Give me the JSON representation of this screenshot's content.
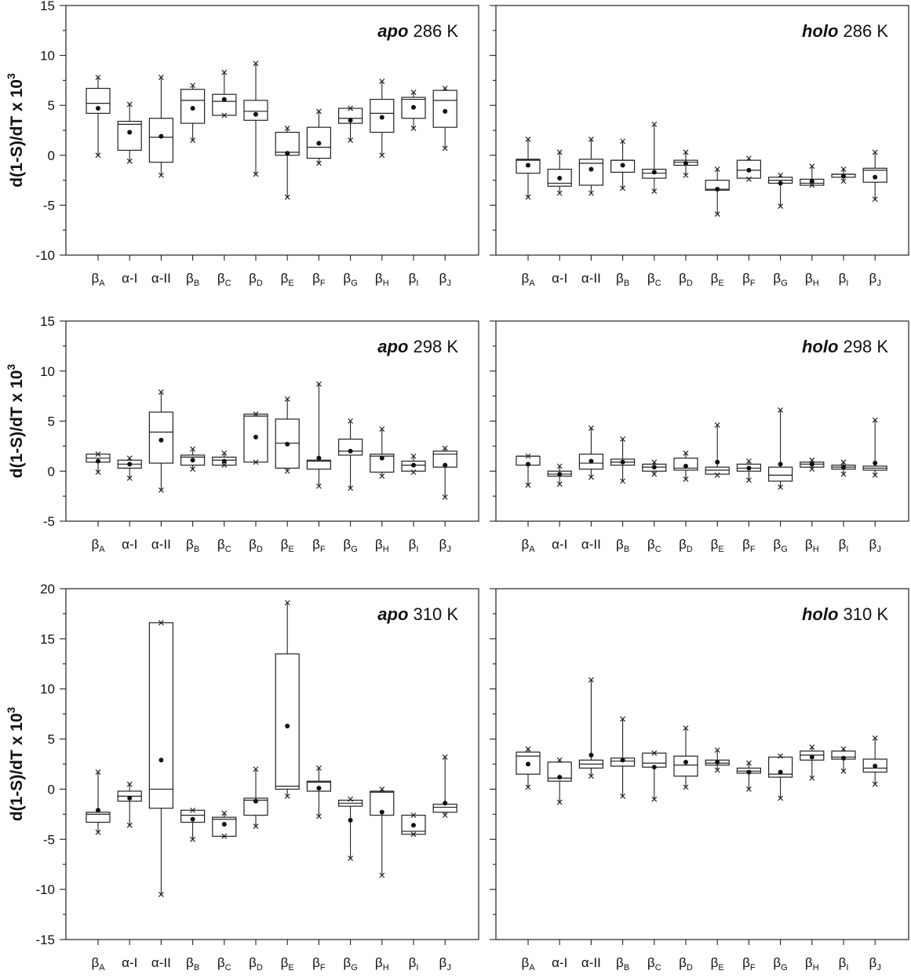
{
  "y_axis_label": "d(1-S)/dT x 10",
  "y_axis_exponent": "3",
  "chart_data": [
    {
      "type": "box",
      "panel": "apo-286",
      "title_italic": "apo",
      "title_rest": " 286 K",
      "ylim": [
        -10,
        15
      ],
      "yticks": [
        -10,
        -5,
        0,
        5,
        10,
        15
      ],
      "categories": [
        {
          "b": "β",
          "s": "A"
        },
        {
          "b": "α-I",
          "s": ""
        },
        {
          "b": "α-II",
          "s": ""
        },
        {
          "b": "β",
          "s": "B"
        },
        {
          "b": "β",
          "s": "C"
        },
        {
          "b": "β",
          "s": "D"
        },
        {
          "b": "β",
          "s": "E"
        },
        {
          "b": "β",
          "s": "F"
        },
        {
          "b": "β",
          "s": "G"
        },
        {
          "b": "β",
          "s": "H"
        },
        {
          "b": "β",
          "s": "I"
        },
        {
          "b": "β",
          "s": "J"
        }
      ],
      "boxes": [
        {
          "min": 0,
          "q1": 4.2,
          "median": 5.2,
          "q3": 6.7,
          "max": 7.8,
          "mean": 4.7
        },
        {
          "min": -0.6,
          "q1": 0.5,
          "median": 3.1,
          "q3": 3.4,
          "max": 5.1,
          "mean": 2.3
        },
        {
          "min": -2,
          "q1": -0.7,
          "median": 1.8,
          "q3": 3.7,
          "max": 7.8,
          "mean": 1.9
        },
        {
          "min": 1.5,
          "q1": 3.2,
          "median": 5.5,
          "q3": 6.6,
          "max": 7,
          "mean": 4.7
        },
        {
          "min": 4,
          "q1": 4,
          "median": 5.4,
          "q3": 6.1,
          "max": 8.3,
          "mean": 5.6
        },
        {
          "min": -1.9,
          "q1": 3.5,
          "median": 4.4,
          "q3": 5.5,
          "max": 9.2,
          "mean": 4.1
        },
        {
          "min": -4.2,
          "q1": 0,
          "median": 0.3,
          "q3": 2.3,
          "max": 2.7,
          "mean": 0.2
        },
        {
          "min": -0.8,
          "q1": -0.3,
          "median": 0.8,
          "q3": 2.8,
          "max": 4.4,
          "mean": 1.2
        },
        {
          "min": 1.5,
          "q1": 3.2,
          "median": 3.7,
          "q3": 4.7,
          "max": 4.7,
          "mean": 3.5
        },
        {
          "min": 0,
          "q1": 2.3,
          "median": 4.2,
          "q3": 5.6,
          "max": 7.4,
          "mean": 3.8
        },
        {
          "min": 2.7,
          "q1": 3.7,
          "median": 5.6,
          "q3": 5.8,
          "max": 6.3,
          "mean": 4.8
        },
        {
          "min": 0.7,
          "q1": 2.8,
          "median": 5.5,
          "q3": 6.5,
          "max": 6.7,
          "mean": 4.4
        }
      ]
    },
    {
      "type": "box",
      "panel": "holo-286",
      "title_italic": "holo",
      "title_rest": " 286 K",
      "ylim": [
        -10,
        15
      ],
      "yticks": [
        -10,
        -5,
        0,
        5,
        10,
        15
      ],
      "categories": [
        {
          "b": "β",
          "s": "A"
        },
        {
          "b": "α-I",
          "s": ""
        },
        {
          "b": "α-II",
          "s": ""
        },
        {
          "b": "β",
          "s": "B"
        },
        {
          "b": "β",
          "s": "C"
        },
        {
          "b": "β",
          "s": "D"
        },
        {
          "b": "β",
          "s": "E"
        },
        {
          "b": "β",
          "s": "F"
        },
        {
          "b": "β",
          "s": "G"
        },
        {
          "b": "β",
          "s": "H"
        },
        {
          "b": "β",
          "s": "I"
        },
        {
          "b": "β",
          "s": "J"
        }
      ],
      "boxes": [
        {
          "min": -4.2,
          "q1": -1.8,
          "median": -0.5,
          "q3": -0.4,
          "max": 1.6,
          "mean": -1
        },
        {
          "min": -3.8,
          "q1": -3.1,
          "median": -2.8,
          "q3": -1.4,
          "max": 0.3,
          "mean": -2.3
        },
        {
          "min": -3.8,
          "q1": -3,
          "median": -0.8,
          "q3": -0.4,
          "max": 1.6,
          "mean": -1.4
        },
        {
          "min": -3.3,
          "q1": -1.7,
          "median": -0.5,
          "q3": -0.5,
          "max": 1.4,
          "mean": -1
        },
        {
          "min": -3.6,
          "q1": -2.3,
          "median": -1.8,
          "q3": -1.4,
          "max": 3.1,
          "mean": -1.7
        },
        {
          "min": -2,
          "q1": -1,
          "median": -0.7,
          "q3": -0.5,
          "max": 0.3,
          "mean": -0.8
        },
        {
          "min": -5.9,
          "q1": -3.5,
          "median": -3.4,
          "q3": -2.5,
          "max": -1.4,
          "mean": -3.4
        },
        {
          "min": -2.4,
          "q1": -2.3,
          "median": -1.5,
          "q3": -0.5,
          "max": -0.3,
          "mean": -1.5
        },
        {
          "min": -5.1,
          "q1": -2.8,
          "median": -2.5,
          "q3": -2.2,
          "max": -2,
          "mean": -2.8
        },
        {
          "min": -3,
          "q1": -3,
          "median": -2.8,
          "q3": -2.4,
          "max": -1.1,
          "mean": -2.6
        },
        {
          "min": -2.6,
          "q1": -2.2,
          "median": -1.9,
          "q3": -1.9,
          "max": -1.4,
          "mean": -2.1
        },
        {
          "min": -4.4,
          "q1": -2.7,
          "median": -1.5,
          "q3": -1.3,
          "max": 0.3,
          "mean": -2.2
        }
      ]
    },
    {
      "type": "box",
      "panel": "apo-298",
      "title_italic": "apo",
      "title_rest": " 298 K",
      "ylim": [
        -5,
        15
      ],
      "yticks": [
        -5,
        0,
        5,
        10,
        15
      ],
      "categories": [
        {
          "b": "β",
          "s": "A"
        },
        {
          "b": "α-I",
          "s": ""
        },
        {
          "b": "α-II",
          "s": ""
        },
        {
          "b": "β",
          "s": "B"
        },
        {
          "b": "β",
          "s": "C"
        },
        {
          "b": "β",
          "s": "D"
        },
        {
          "b": "β",
          "s": "E"
        },
        {
          "b": "β",
          "s": "F"
        },
        {
          "b": "β",
          "s": "G"
        },
        {
          "b": "β",
          "s": "H"
        },
        {
          "b": "β",
          "s": "I"
        },
        {
          "b": "β",
          "s": "J"
        }
      ],
      "boxes": [
        {
          "min": -0.1,
          "q1": 0.9,
          "median": 1.3,
          "q3": 1.7,
          "max": 1.7,
          "mean": 1
        },
        {
          "min": -0.7,
          "q1": 0.3,
          "median": 0.7,
          "q3": 1.1,
          "max": 1.3,
          "mean": 0.7
        },
        {
          "min": -1.9,
          "q1": 0.8,
          "median": 3.9,
          "q3": 5.9,
          "max": 7.9,
          "mean": 3.1
        },
        {
          "min": 0.2,
          "q1": 0.6,
          "median": 1.4,
          "q3": 1.6,
          "max": 2.2,
          "mean": 1.1
        },
        {
          "min": 0.6,
          "q1": 0.6,
          "median": 1.1,
          "q3": 1.4,
          "max": 1.8,
          "mean": 1
        },
        {
          "min": 0.9,
          "q1": 0.9,
          "median": 5.5,
          "q3": 5.7,
          "max": 5.7,
          "mean": 3.4
        },
        {
          "min": 0,
          "q1": 0.3,
          "median": 2.8,
          "q3": 5.2,
          "max": 7.2,
          "mean": 2.7
        },
        {
          "min": -1.5,
          "q1": 0.2,
          "median": 1,
          "q3": 1.1,
          "max": 8.7,
          "mean": 1.3
        },
        {
          "min": -1.7,
          "q1": 1.6,
          "median": 2,
          "q3": 3.2,
          "max": 5,
          "mean": 2
        },
        {
          "min": -0.5,
          "q1": -0.1,
          "median": 1.5,
          "q3": 1.7,
          "max": 4.2,
          "mean": 1.3
        },
        {
          "min": -0.1,
          "q1": 0,
          "median": 0.6,
          "q3": 1,
          "max": 1.5,
          "mean": 0.6
        },
        {
          "min": -2.6,
          "q1": 0.4,
          "median": 1.7,
          "q3": 2,
          "max": 2.3,
          "mean": 0.6
        }
      ]
    },
    {
      "type": "box",
      "panel": "holo-298",
      "title_italic": "holo",
      "title_rest": " 298 K",
      "ylim": [
        -5,
        15
      ],
      "yticks": [
        -5,
        0,
        5,
        10,
        15
      ],
      "categories": [
        {
          "b": "β",
          "s": "A"
        },
        {
          "b": "α-I",
          "s": ""
        },
        {
          "b": "α-II",
          "s": ""
        },
        {
          "b": "β",
          "s": "B"
        },
        {
          "b": "β",
          "s": "C"
        },
        {
          "b": "β",
          "s": "D"
        },
        {
          "b": "β",
          "s": "E"
        },
        {
          "b": "β",
          "s": "F"
        },
        {
          "b": "β",
          "s": "G"
        },
        {
          "b": "β",
          "s": "H"
        },
        {
          "b": "β",
          "s": "I"
        },
        {
          "b": "β",
          "s": "J"
        }
      ],
      "boxes": [
        {
          "min": -1.4,
          "q1": 0.6,
          "median": 1.5,
          "q3": 1.5,
          "max": 1.5,
          "mean": 0.7
        },
        {
          "min": -1.3,
          "q1": -0.5,
          "median": -0.3,
          "q3": 0,
          "max": 0.5,
          "mean": -0.3
        },
        {
          "min": -0.6,
          "q1": 0.2,
          "median": 0.8,
          "q3": 1.7,
          "max": 4.3,
          "mean": 1
        },
        {
          "min": -1,
          "q1": 0.6,
          "median": 0.9,
          "q3": 1.2,
          "max": 3.2,
          "mean": 0.9
        },
        {
          "min": -0.3,
          "q1": 0,
          "median": 0.4,
          "q3": 0.7,
          "max": 0.9,
          "mean": 0.4
        },
        {
          "min": -0.8,
          "q1": 0.1,
          "median": 0.3,
          "q3": 1.3,
          "max": 1.8,
          "mean": 0.5
        },
        {
          "min": -0.4,
          "q1": -0.3,
          "median": 0.1,
          "q3": 0.4,
          "max": 4.6,
          "mean": 0.9
        },
        {
          "min": -0.9,
          "q1": 0,
          "median": 0.3,
          "q3": 0.7,
          "max": 1,
          "mean": 0.3
        },
        {
          "min": -1.6,
          "q1": -1,
          "median": -0.4,
          "q3": 0.4,
          "max": 6.1,
          "mean": 0.7
        },
        {
          "min": 0.2,
          "q1": 0.4,
          "median": 0.7,
          "q3": 0.9,
          "max": 1.1,
          "mean": 0.7
        },
        {
          "min": -0.3,
          "q1": 0.2,
          "median": 0.4,
          "q3": 0.6,
          "max": 0.9,
          "mean": 0.4
        },
        {
          "min": -0.4,
          "q1": 0.1,
          "median": 0.3,
          "q3": 0.5,
          "max": 5.1,
          "mean": 0.8
        }
      ]
    },
    {
      "type": "box",
      "panel": "apo-310",
      "title_italic": "apo",
      "title_rest": " 310 K",
      "ylim": [
        -15,
        20
      ],
      "yticks": [
        -15,
        -10,
        -5,
        0,
        5,
        10,
        15,
        20
      ],
      "categories": [
        {
          "b": "β",
          "s": "A"
        },
        {
          "b": "α-I",
          "s": ""
        },
        {
          "b": "α-II",
          "s": ""
        },
        {
          "b": "β",
          "s": "B"
        },
        {
          "b": "β",
          "s": "C"
        },
        {
          "b": "β",
          "s": "D"
        },
        {
          "b": "β",
          "s": "E"
        },
        {
          "b": "β",
          "s": "F"
        },
        {
          "b": "β",
          "s": "G"
        },
        {
          "b": "β",
          "s": "H"
        },
        {
          "b": "β",
          "s": "I"
        },
        {
          "b": "β",
          "s": "J"
        }
      ],
      "boxes": [
        {
          "min": -4.3,
          "q1": -3.3,
          "median": -2.5,
          "q3": -2.3,
          "max": 1.7,
          "mean": -2.1
        },
        {
          "min": -3.6,
          "q1": -1.2,
          "median": -0.7,
          "q3": -0.2,
          "max": 0.5,
          "mean": -0.9
        },
        {
          "min": -10.5,
          "q1": -1.9,
          "median": 0,
          "q3": 16.6,
          "max": 16.6,
          "mean": 2.9
        },
        {
          "min": -5,
          "q1": -3.3,
          "median": -2.6,
          "q3": -2.1,
          "max": -2.1,
          "mean": -3
        },
        {
          "min": -4.7,
          "q1": -4.7,
          "median": -3,
          "q3": -2.8,
          "max": -2.4,
          "mean": -3.5
        },
        {
          "min": -3.7,
          "q1": -2.6,
          "median": -1.1,
          "q3": -0.9,
          "max": 2,
          "mean": -1.2
        },
        {
          "min": -0.7,
          "q1": 0,
          "median": 0.3,
          "q3": 13.5,
          "max": 18.6,
          "mean": 6.3
        },
        {
          "min": -2.7,
          "q1": -0.2,
          "median": 0.7,
          "q3": 0.8,
          "max": 2.1,
          "mean": 0.1
        },
        {
          "min": -6.9,
          "q1": -1.7,
          "median": -1.4,
          "q3": -1.1,
          "max": -1,
          "mean": -3.1
        },
        {
          "min": -8.6,
          "q1": -2.6,
          "median": -0.3,
          "q3": -0.2,
          "max": 0,
          "mean": -2.3
        },
        {
          "min": -4.5,
          "q1": -4.5,
          "median": -4.2,
          "q3": -2.6,
          "max": -2.6,
          "mean": -3.6
        },
        {
          "min": -2.6,
          "q1": -2.3,
          "median": -1.8,
          "q3": -1.5,
          "max": 3.2,
          "mean": -1.4
        }
      ]
    },
    {
      "type": "box",
      "panel": "holo-310",
      "title_italic": "holo",
      "title_rest": " 310 K",
      "ylim": [
        -15,
        20
      ],
      "yticks": [
        -15,
        -10,
        -5,
        0,
        5,
        10,
        15,
        20
      ],
      "categories": [
        {
          "b": "β",
          "s": "A"
        },
        {
          "b": "α-I",
          "s": ""
        },
        {
          "b": "α-II",
          "s": ""
        },
        {
          "b": "β",
          "s": "B"
        },
        {
          "b": "β",
          "s": "C"
        },
        {
          "b": "β",
          "s": "D"
        },
        {
          "b": "β",
          "s": "E"
        },
        {
          "b": "β",
          "s": "F"
        },
        {
          "b": "β",
          "s": "G"
        },
        {
          "b": "β",
          "s": "H"
        },
        {
          "b": "β",
          "s": "I"
        },
        {
          "b": "β",
          "s": "J"
        }
      ],
      "boxes": [
        {
          "min": 0.2,
          "q1": 1.5,
          "median": 3.3,
          "q3": 3.7,
          "max": 4,
          "mean": 2.5
        },
        {
          "min": -1.3,
          "q1": 0.8,
          "median": 1.1,
          "q3": 2.7,
          "max": 2.9,
          "mean": 1.2
        },
        {
          "min": 1.3,
          "q1": 2.1,
          "median": 2.5,
          "q3": 2.9,
          "max": 10.9,
          "mean": 3.4
        },
        {
          "min": -0.7,
          "q1": 2.3,
          "median": 2.8,
          "q3": 3.1,
          "max": 7,
          "mean": 2.9
        },
        {
          "min": -1,
          "q1": 2.2,
          "median": 2.6,
          "q3": 3.6,
          "max": 3.6,
          "mean": 2.2
        },
        {
          "min": 0.2,
          "q1": 1.3,
          "median": 2.4,
          "q3": 3.3,
          "max": 6.1,
          "mean": 2.7
        },
        {
          "min": 1.9,
          "q1": 2.4,
          "median": 2.6,
          "q3": 2.9,
          "max": 3.9,
          "mean": 2.7
        },
        {
          "min": 0,
          "q1": 1.6,
          "median": 1.8,
          "q3": 2.1,
          "max": 2.6,
          "mean": 1.7
        },
        {
          "min": -0.9,
          "q1": 1.2,
          "median": 1.5,
          "q3": 3.2,
          "max": 3.3,
          "mean": 1.7
        },
        {
          "min": 1.1,
          "q1": 2.9,
          "median": 3.4,
          "q3": 3.8,
          "max": 4.2,
          "mean": 3.2
        },
        {
          "min": 1.8,
          "q1": 3,
          "median": 3.2,
          "q3": 3.8,
          "max": 4,
          "mean": 3.1
        },
        {
          "min": 0.5,
          "q1": 1.7,
          "median": 2.1,
          "q3": 3,
          "max": 5.1,
          "mean": 2.3
        }
      ]
    }
  ]
}
